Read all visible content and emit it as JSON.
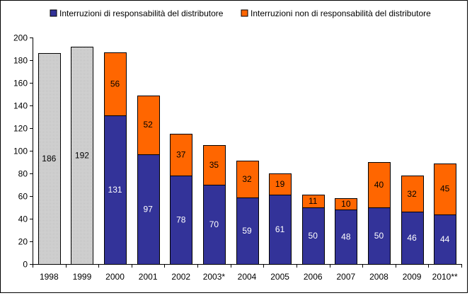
{
  "chart_data": {
    "type": "bar",
    "stacked": true,
    "categories": [
      "1998",
      "1999",
      "2000",
      "2001",
      "2002",
      "2003*",
      "2004",
      "2005",
      "2006",
      "2007",
      "2008",
      "2009",
      "2010**"
    ],
    "series": [
      {
        "name": "Interruzioni di responsabilità del distributore",
        "color": "#333399",
        "values": [
          null,
          null,
          131,
          97,
          78,
          70,
          59,
          61,
          50,
          48,
          50,
          46,
          44
        ]
      },
      {
        "name": "Interruzioni non di responsabilità del distributore",
        "color": "#ff6600",
        "values": [
          null,
          null,
          56,
          52,
          37,
          35,
          32,
          19,
          11,
          10,
          40,
          32,
          45
        ]
      }
    ],
    "totals_only": {
      "color": "#c0c0c0",
      "values": [
        186,
        192,
        null,
        null,
        null,
        null,
        null,
        null,
        null,
        null,
        null,
        null,
        null
      ]
    },
    "ylim": [
      0,
      200
    ],
    "yticks": [
      "0",
      "20",
      "40",
      "60",
      "80",
      "100",
      "120",
      "140",
      "160",
      "180",
      "200"
    ],
    "grid": false,
    "legend_position": "top"
  }
}
